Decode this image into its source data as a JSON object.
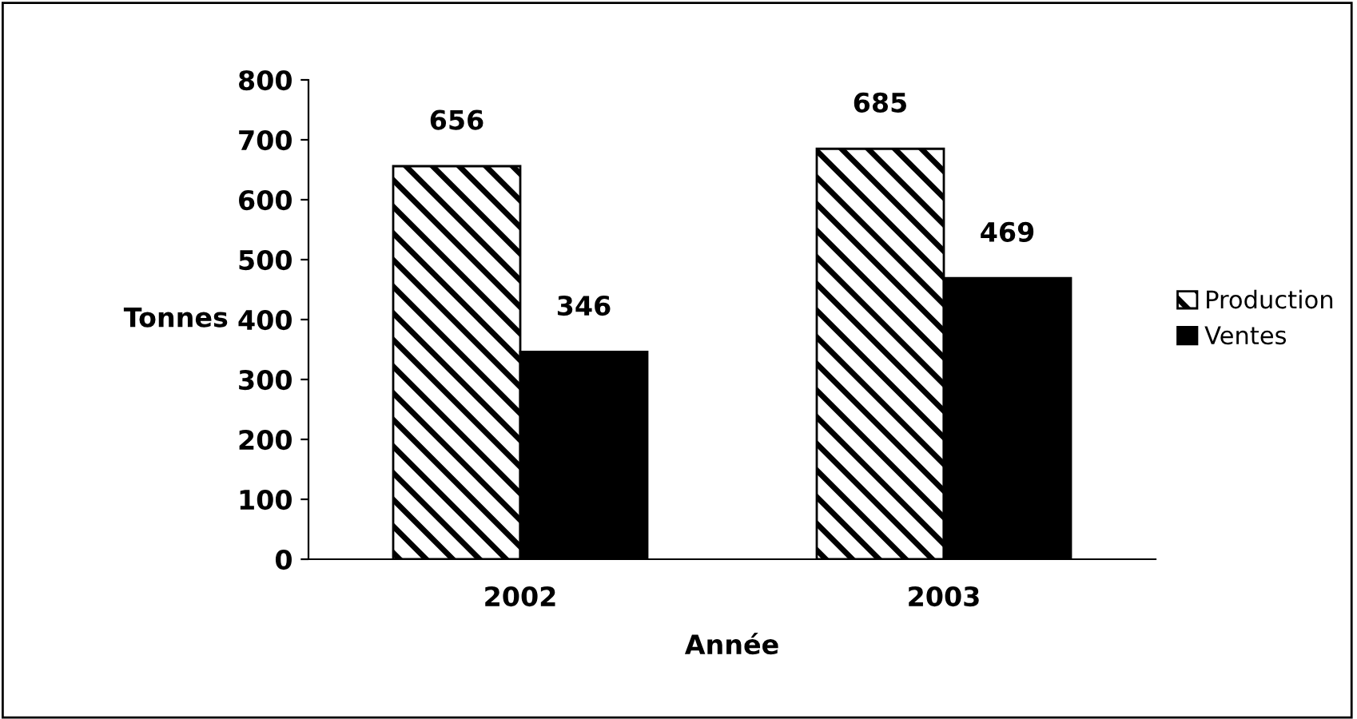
{
  "chart_data": {
    "type": "bar",
    "xlabel": "Année",
    "ylabel": "Tonnes",
    "categories": [
      "2002",
      "2003"
    ],
    "series": [
      {
        "name": "Production",
        "color": "#000000",
        "values": [
          656,
          685
        ]
      },
      {
        "name": "Ventes",
        "color": "#000000",
        "values": [
          346,
          469
        ]
      }
    ],
    "ylim": [
      0,
      800
    ],
    "yticks": [
      0,
      100,
      200,
      300,
      400,
      500,
      600,
      700,
      800
    ],
    "grid": false,
    "legend": "right",
    "data_labels": true
  }
}
